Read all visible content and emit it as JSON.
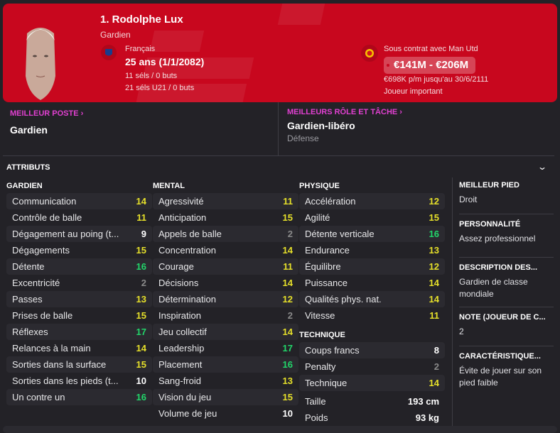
{
  "colors": {
    "header": "#c8071e",
    "accent": "#e040d0",
    "good": "#22d66a",
    "mid": "#e6e02a",
    "low": "#8a8a8a",
    "neutral": "#ffffff"
  },
  "player": {
    "name": "1. Rodolphe Lux",
    "position": "Gardien",
    "nationality": "Français",
    "age": "25 ans (1/1/2082)",
    "caps": "11 séls / 0 buts",
    "caps_u21": "21 séls U21 / 0 buts",
    "contract": "Sous contrat avec Man Utd",
    "value": "€141M - €206M",
    "wage": "€698K p/m jusqu'au 30/6/2111",
    "squad_status": "Joueur important",
    "flag_icon": "fff-crest-icon",
    "club_icon": "man-utd-crest-icon"
  },
  "best_position": {
    "label": "MEILLEUR POSTE",
    "value": "Gardien"
  },
  "best_role": {
    "label": "MEILLEURS RÔLE ET TÂCHE",
    "value": "Gardien-libéro",
    "duty": "Défense"
  },
  "attributes": {
    "title": "ATTRIBUTS",
    "gardien": {
      "title": "GARDIEN",
      "items": [
        [
          "Communication",
          14
        ],
        [
          "Contrôle de balle",
          11
        ],
        [
          "Dégagement au poing (t...",
          9
        ],
        [
          "Dégagements",
          15
        ],
        [
          "Détente",
          16
        ],
        [
          "Excentricité",
          2
        ],
        [
          "Passes",
          13
        ],
        [
          "Prises de balle",
          15
        ],
        [
          "Réflexes",
          17
        ],
        [
          "Relances à la main",
          14
        ],
        [
          "Sorties dans la surface",
          15
        ],
        [
          "Sorties dans les pieds (t...",
          10
        ],
        [
          "Un contre un",
          16
        ]
      ]
    },
    "mental": {
      "title": "MENTAL",
      "items": [
        [
          "Agressivité",
          11
        ],
        [
          "Anticipation",
          15
        ],
        [
          "Appels de balle",
          2
        ],
        [
          "Concentration",
          14
        ],
        [
          "Courage",
          11
        ],
        [
          "Décisions",
          14
        ],
        [
          "Détermination",
          12
        ],
        [
          "Inspiration",
          2
        ],
        [
          "Jeu collectif",
          14
        ],
        [
          "Leadership",
          17
        ],
        [
          "Placement",
          16
        ],
        [
          "Sang-froid",
          13
        ],
        [
          "Vision du jeu",
          15
        ],
        [
          "Volume de jeu",
          10
        ]
      ]
    },
    "physique": {
      "title": "PHYSIQUE",
      "items": [
        [
          "Accélération",
          12
        ],
        [
          "Agilité",
          15
        ],
        [
          "Détente verticale",
          16
        ],
        [
          "Endurance",
          13
        ],
        [
          "Équilibre",
          12
        ],
        [
          "Puissance",
          14
        ],
        [
          "Qualités phys. nat.",
          14
        ],
        [
          "Vitesse",
          11
        ]
      ]
    },
    "technique": {
      "title": "TECHNIQUE",
      "items": [
        [
          "Coups francs",
          8
        ],
        [
          "Penalty",
          2
        ],
        [
          "Technique",
          14
        ]
      ]
    },
    "body": [
      [
        "Taille",
        "193 cm"
      ],
      [
        "Poids",
        "93 kg"
      ]
    ]
  },
  "info": [
    {
      "title": "MEILLEUR PIED",
      "value": "Droit"
    },
    {
      "title": "PERSONNALITÉ",
      "value": "Assez professionnel"
    },
    {
      "title": "DESCRIPTION DES...",
      "value": "Gardien de classe mondiale"
    },
    {
      "title": "NOTE (JOUEUR DE C...",
      "value": "2"
    },
    {
      "title": "CARACTÉRISTIQUE...",
      "value": "Évite de jouer sur son pied faible"
    }
  ]
}
